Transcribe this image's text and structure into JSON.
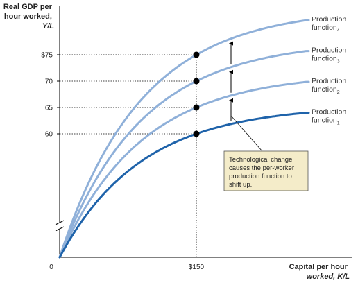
{
  "chart_data": {
    "type": "line",
    "y_label_lines": [
      "Real GDP per",
      "hour worked,",
      "Y/L"
    ],
    "x_label_lines": [
      "Capital per hour",
      "worked, K/L"
    ],
    "origin_label": "0",
    "x_tick": {
      "value": 150,
      "label": "$150"
    },
    "y_ticks": [
      {
        "value": 75,
        "label": "$75"
      },
      {
        "value": 70,
        "label": "70"
      },
      {
        "value": 65,
        "label": "65"
      },
      {
        "value": 60,
        "label": "60"
      }
    ],
    "y_axis_break": true,
    "series": [
      {
        "name_lines": [
          "Production",
          "function",
          "4"
        ],
        "value_at_tick": 75,
        "color": "#8fb0d9"
      },
      {
        "name_lines": [
          "Production",
          "function",
          "3"
        ],
        "value_at_tick": 70,
        "color": "#8fb0d9"
      },
      {
        "name_lines": [
          "Production",
          "function",
          "2"
        ],
        "value_at_tick": 65,
        "color": "#8fb0d9"
      },
      {
        "name_lines": [
          "Production",
          "function",
          "1"
        ],
        "value_at_tick": 60,
        "color": "#1f63aa"
      }
    ],
    "arrows": "upward shifts between successive production functions",
    "annotation_lines": [
      "Technological change",
      "causes the per-worker",
      "production function to",
      "shift up."
    ],
    "annotation_bg": "#f4ecc9"
  }
}
